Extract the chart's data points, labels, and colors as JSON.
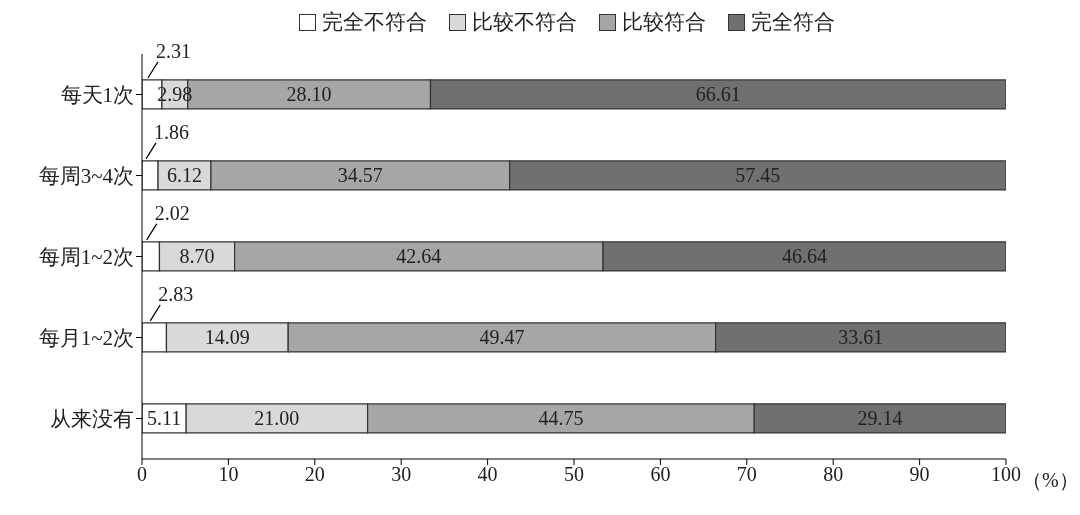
{
  "chart_data": {
    "type": "bar",
    "orientation": "horizontal",
    "stacked": true,
    "xlabel": "（%）",
    "categories": [
      "每天1次",
      "每周3~4次",
      "每周1~2次",
      "每月1~2次",
      "从来没有"
    ],
    "series": [
      {
        "name": "完全不符合",
        "color": "#ffffff",
        "values": [
          2.31,
          1.86,
          2.02,
          2.83,
          5.11
        ],
        "value_labels": [
          "2.31",
          "1.86",
          "2.02",
          "2.83",
          "5.11"
        ]
      },
      {
        "name": "比较不符合",
        "color": "#d9d9d9",
        "values": [
          2.98,
          6.12,
          8.7,
          14.09,
          21.0
        ],
        "value_labels": [
          "2.98",
          "6.12",
          "8.70",
          "14.09",
          "21.00"
        ]
      },
      {
        "name": "比较符合",
        "color": "#a6a6a6",
        "values": [
          28.1,
          34.57,
          42.64,
          49.47,
          44.75
        ],
        "value_labels": [
          "28.10",
          "34.57",
          "42.64",
          "49.47",
          "44.75"
        ]
      },
      {
        "name": "完全符合",
        "color": "#707070",
        "values": [
          66.61,
          57.45,
          46.64,
          33.61,
          29.14
        ],
        "value_labels": [
          "66.61",
          "57.45",
          "46.64",
          "33.61",
          "29.14"
        ]
      }
    ],
    "xlim": [
      0,
      100
    ],
    "xticks": [
      0,
      10,
      20,
      30,
      40,
      50,
      60,
      70,
      80,
      90,
      100
    ],
    "legend": "top",
    "grid": false
  }
}
